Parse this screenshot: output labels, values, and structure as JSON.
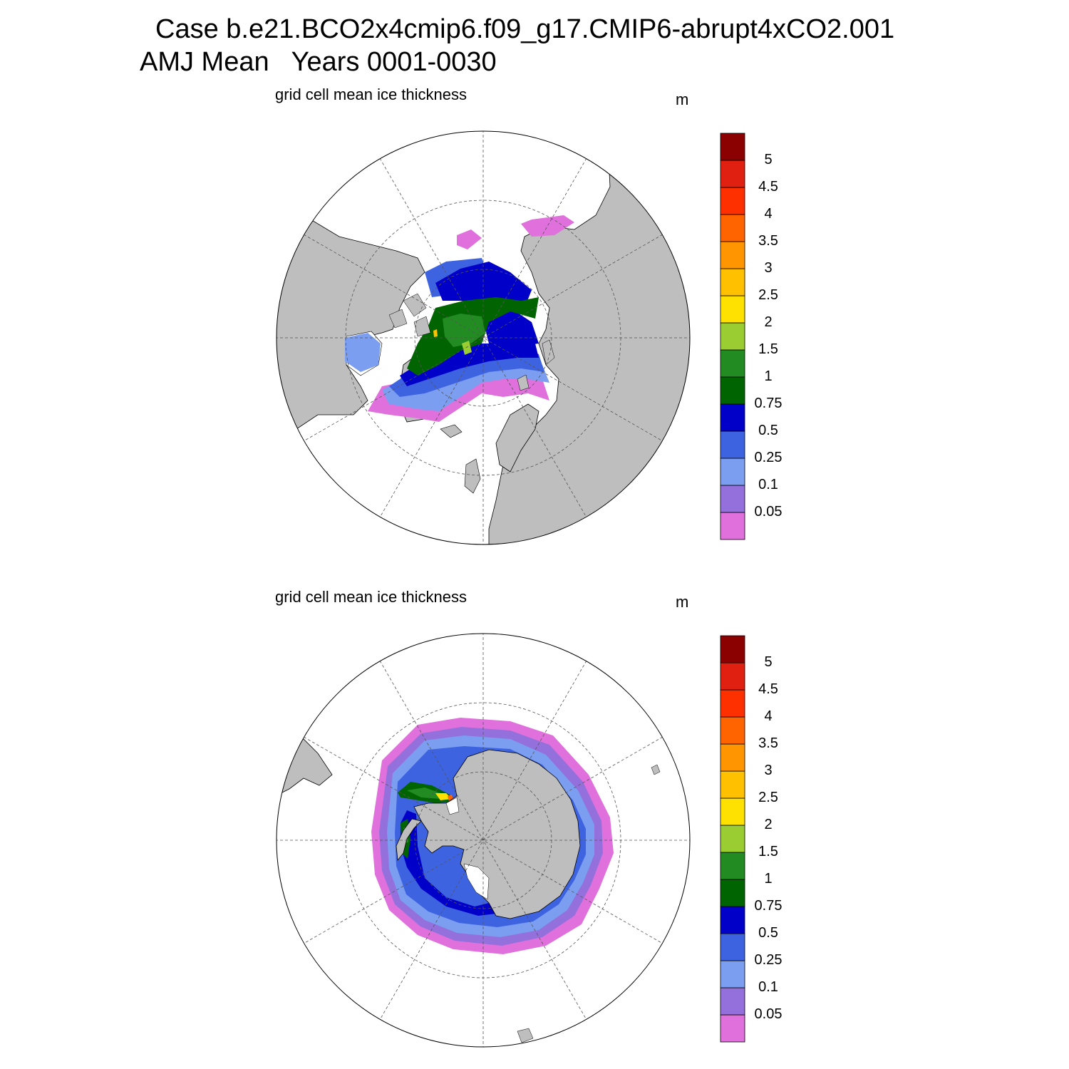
{
  "figure": {
    "title_line1": "Case b.e21.BCO2x4cmip6.f09_g17.CMIP6-abrupt4xCO2.001",
    "title_line2": "AMJ Mean   Years 0001-0030"
  },
  "colorbar": {
    "levels": [
      "0.05",
      "0.1",
      "0.25",
      "0.5",
      "0.75",
      "1",
      "1.5",
      "2",
      "2.5",
      "3",
      "3.5",
      "4",
      "4.5",
      "5"
    ],
    "colors": [
      "#e070dc",
      "#9370db",
      "#7b9ef0",
      "#3e63e0",
      "#0000c8",
      "#006400",
      "#228b22",
      "#9acd32",
      "#ffe100",
      "#ffc000",
      "#ff9500",
      "#ff6400",
      "#ff3000",
      "#e02010",
      "#8b0000"
    ]
  },
  "colors": {
    "land": "#bebebe",
    "ocean": "#ffffff"
  },
  "panels": [
    {
      "id": "north",
      "hemisphere": "Northern Hemisphere",
      "title": "grid cell mean ice thickness",
      "unit": "m"
    },
    {
      "id": "south",
      "hemisphere": "Southern Hemisphere",
      "title": "grid cell mean ice thickness",
      "unit": "m"
    }
  ]
}
